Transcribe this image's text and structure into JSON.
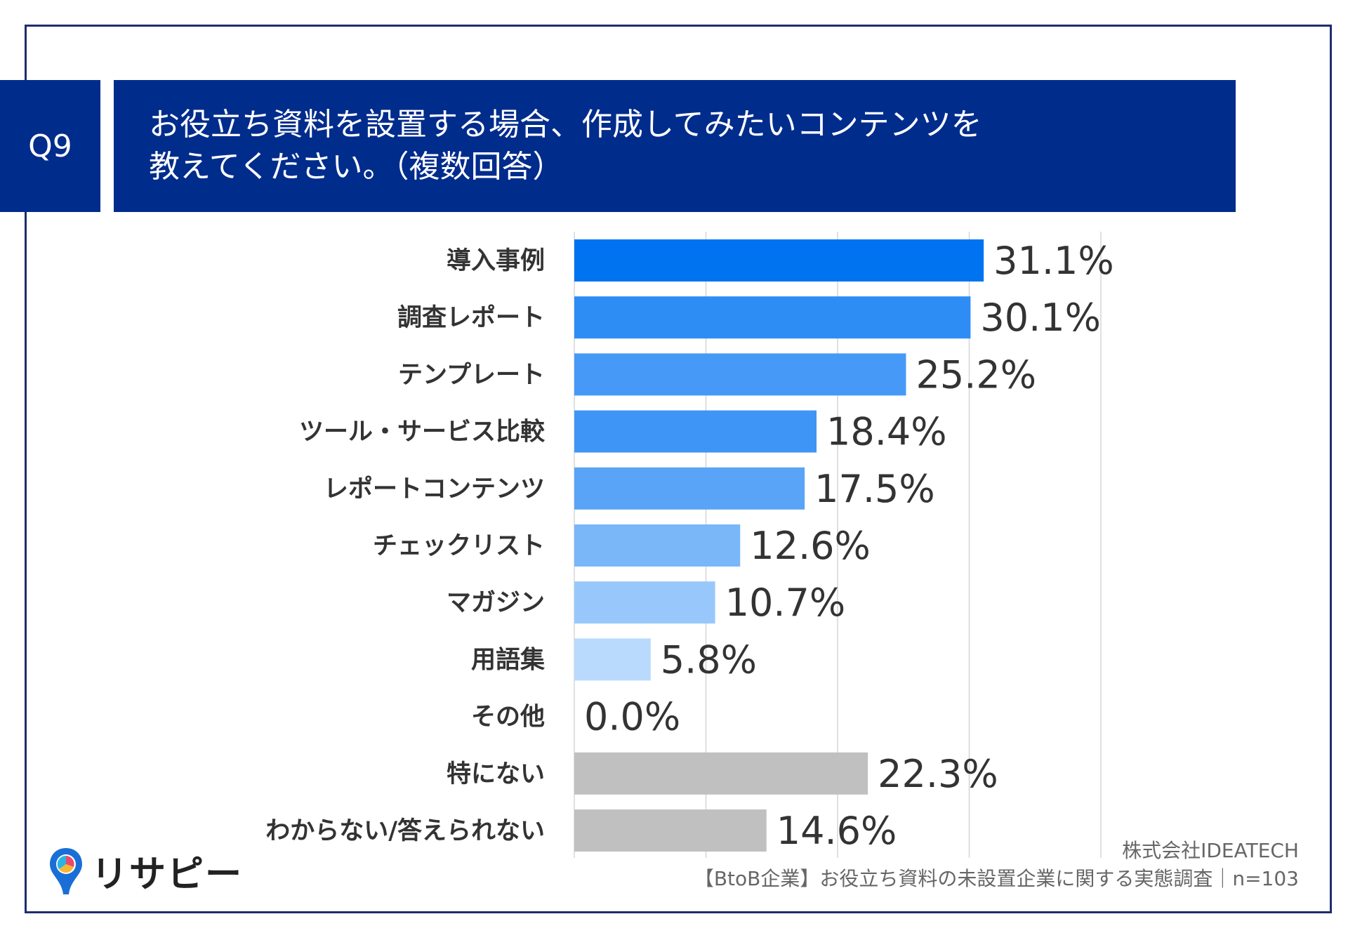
{
  "header": {
    "q_label": "Q9",
    "title_line1": "お役立ち資料を設置する場合、作成してみたいコンテンツを",
    "title_line2": "教えてください。（複数回答）"
  },
  "footer": {
    "company": "株式会社IDEATECH",
    "survey": "【BtoB企業】お役立ち資料の未設置企業に関する実態調査｜n=103"
  },
  "logo": {
    "text": "リサピー",
    "icon": "pin-icon"
  },
  "chart_data": {
    "type": "bar",
    "orientation": "horizontal",
    "title": "お役立ち資料を設置する場合、作成してみたいコンテンツを教えてください。（複数回答）",
    "unit": "%",
    "xlim": [
      0,
      40
    ],
    "grid": true,
    "categories": [
      "導入事例",
      "調査レポート",
      "テンプレート",
      "ツール・サービス比較",
      "レポートコンテンツ",
      "チェックリスト",
      "マガジン",
      "用語集",
      "その他",
      "特にない",
      "わからない/答えられない"
    ],
    "values": [
      31.1,
      30.1,
      25.2,
      18.4,
      17.5,
      12.6,
      10.7,
      5.8,
      0.0,
      22.3,
      14.6
    ],
    "value_labels": [
      "31.1%",
      "30.1%",
      "25.2%",
      "18.4%",
      "17.5%",
      "12.6%",
      "10.7%",
      "5.8%",
      "0.0%",
      "22.3%",
      "14.6%"
    ],
    "colors": [
      "#0073f0",
      "#2e8cf5",
      "#4799f7",
      "#3f95f6",
      "#5aa4f7",
      "#7ab7f9",
      "#98c8fb",
      "#b9dafd",
      "#c9e2fd",
      "#c0c0c0",
      "#c0c0c0"
    ]
  }
}
